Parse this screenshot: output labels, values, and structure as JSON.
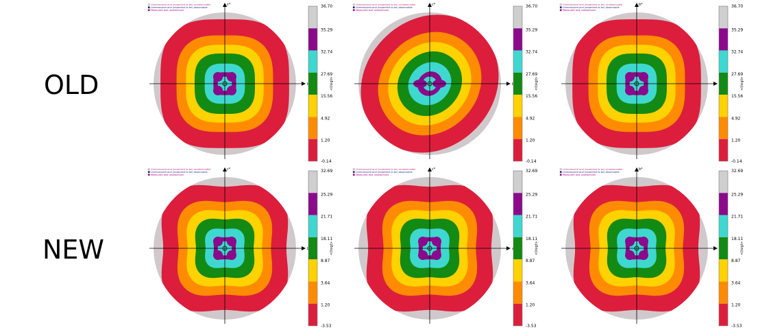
{
  "rows": [
    {
      "label": "OLD",
      "panels": [
        {
          "axis_h": "b*",
          "axis_v": "c*",
          "scale": [
            "36.70",
            "35.29",
            "32.74",
            "27.69",
            "15.56",
            "4.92",
            "1.20",
            "-0.14"
          ],
          "pattern": "x4"
        },
        {
          "axis_h": "b*",
          "axis_v": "c*",
          "scale": [
            "36.70",
            "35.29",
            "32.74",
            "27.69",
            "15.56",
            "4.92",
            "1.20",
            "-0.14"
          ],
          "pattern": "x2"
        },
        {
          "axis_h": "a*",
          "axis_v": "b*",
          "scale": [
            "36.70",
            "35.29",
            "32.74",
            "27.69",
            "15.56",
            "4.92",
            "1.20",
            "-0.14"
          ],
          "pattern": "x4"
        }
      ]
    },
    {
      "label": "NEW",
      "panels": [
        {
          "axis_h": "b*",
          "axis_v": "c*",
          "scale": [
            "32.69",
            "25.29",
            "21.71",
            "18.11",
            "8.87",
            "3.64",
            "1.20",
            "-3.53"
          ],
          "pattern": "x4"
        },
        {
          "axis_h": "a*",
          "axis_v": "c*",
          "scale": [
            "32.69",
            "25.29",
            "21.71",
            "18.11",
            "8.87",
            "3.64",
            "1.20",
            "-3.53"
          ],
          "pattern": "x4"
        },
        {
          "axis_h": "a*",
          "axis_v": "b*",
          "scale": [
            "32.69",
            "25.29",
            "21.71",
            "18.11",
            "8.87",
            "3.64",
            "1.20",
            "-3.53"
          ],
          "pattern": "x4"
        }
      ]
    }
  ],
  "legend": [
    {
      "text": "Unmeasured and (expected to be) unobservable",
      "color": "#d8d8d8"
    },
    {
      "text": "Unmeasured and (expected to be) observable",
      "color": "#1a1a8c"
    },
    {
      "text": "Measured and unobserved",
      "color": "#b3007a"
    }
  ],
  "colorbar_label": "<I/sigI>",
  "band_colors": [
    "#cfcfcf",
    "#8b0a8b",
    "#3fd8d0",
    "#138a13",
    "#ffd200",
    "#ff8c00",
    "#dc1e3c"
  ]
}
